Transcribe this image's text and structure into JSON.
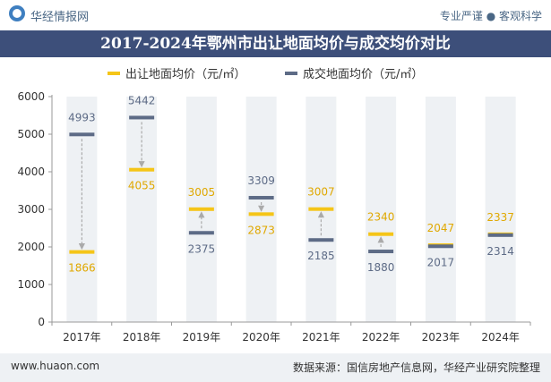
{
  "header": {
    "logo_text": "华经情报网",
    "tagline": "专业严谨 ● 客观科学",
    "title": "2017-2024年鄂州市出让地面均价与成交均价对比"
  },
  "footer": {
    "site": "www.huaon.com",
    "source": "数据来源：国信房地产信息网，华经产业研究院整理"
  },
  "colors": {
    "series_1": "#f5c518",
    "series_2": "#5d6b86",
    "column_bg": "#eef1f4",
    "title_bg": "#3d4f7a",
    "arrow": "#aaaaaa"
  },
  "chart_data": {
    "type": "dot-range",
    "title": "2017-2024年鄂州市出让地面均价与成交均价对比",
    "categories": [
      "2017年",
      "2018年",
      "2019年",
      "2020年",
      "2021年",
      "2022年",
      "2023年",
      "2024年"
    ],
    "series": [
      {
        "name": "出让地面均价（元/㎡）",
        "values": [
          1866,
          4055,
          3005,
          2873,
          3007,
          2340,
          2047,
          2337
        ]
      },
      {
        "name": "成交地面均价（元/㎡）",
        "values": [
          4993,
          5442,
          2375,
          3309,
          2185,
          1880,
          2017,
          2314
        ]
      }
    ],
    "yticks": [
      "0",
      "1000",
      "2000",
      "3000",
      "4000",
      "5000",
      "6000"
    ],
    "ylim": [
      0,
      6000
    ],
    "legend_position": "top"
  }
}
